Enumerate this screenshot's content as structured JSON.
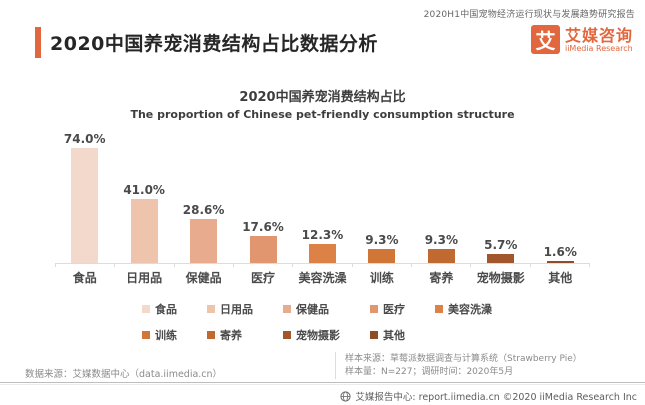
{
  "header": {
    "report_tag": "2020H1中国宠物经济运行现状与发展趋势研究报告",
    "page_title": "2020中国养宠消费结构占比数据分析",
    "logo": {
      "mark": "艾",
      "name_cn": "艾媒咨询",
      "name_en": "iiMedia Research"
    }
  },
  "chart_data": {
    "type": "bar",
    "title": "2020中国养宠消费结构占比",
    "subtitle": "The proportion of Chinese pet-friendly consumption structure",
    "categories": [
      "食品",
      "日用品",
      "保健品",
      "医疗",
      "美容洗澡",
      "训练",
      "寄养",
      "宠物摄影",
      "其他"
    ],
    "values": [
      74.0,
      41.0,
      28.6,
      17.6,
      12.3,
      9.3,
      9.3,
      5.7,
      1.6
    ],
    "value_labels": [
      "74.0%",
      "41.0%",
      "28.6%",
      "17.6%",
      "12.3%",
      "9.3%",
      "9.3%",
      "5.7%",
      "1.6%"
    ],
    "bar_colors": [
      "#f2d9cc",
      "#eec4ad",
      "#e8ab8d",
      "#e19670",
      "#dc8246",
      "#d07738",
      "#c06a31",
      "#a2562b",
      "#8f4c27"
    ],
    "unit": "%",
    "ylim": [
      0,
      80
    ],
    "grid": false,
    "legend_position": "bottom"
  },
  "footnotes": {
    "data_source": "数据来源：艾媒数据中心（data.iimedia.cn）",
    "sample_source": "样本来源：草莓派数据调查与计算系统（Strawberry Pie）",
    "sample_info": "样本量：N=227；调研时间：2020年5月"
  },
  "footer": {
    "copyright": "艾媒报告中心: report.iimedia.cn  ©2020  iiMedia Research  Inc"
  },
  "colors": {
    "accent": "#e2673e",
    "axis": "#dcdcdc",
    "label": "#4a4a4a",
    "footnote": "#8a8a8a"
  }
}
